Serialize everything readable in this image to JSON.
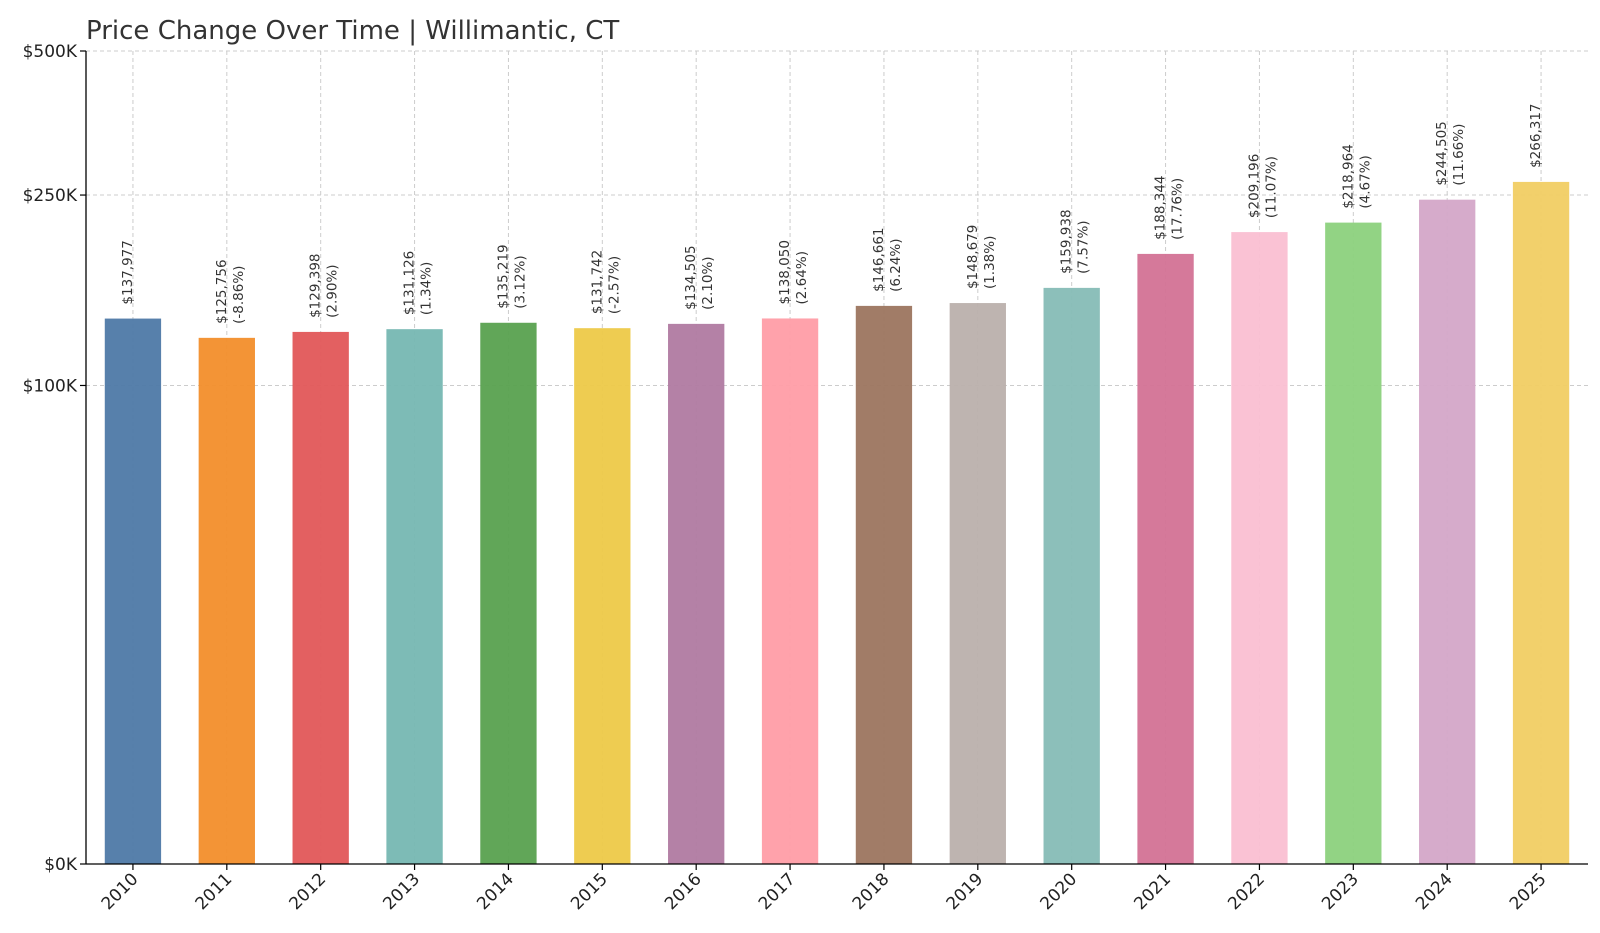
{
  "chart_data": {
    "type": "bar",
    "title": "Price Change Over Time | Willimantic, CT",
    "xlabel": "",
    "ylabel": "",
    "categories": [
      "2010",
      "2011",
      "2012",
      "2013",
      "2014",
      "2015",
      "2016",
      "2017",
      "2018",
      "2019",
      "2020",
      "2021",
      "2022",
      "2023",
      "2024",
      "2025"
    ],
    "values": [
      137977,
      125756,
      129398,
      131126,
      135219,
      131742,
      134505,
      138050,
      146661,
      148679,
      159938,
      188344,
      209196,
      218964,
      244505,
      266317
    ],
    "value_labels": [
      "$137,977",
      "$125,756",
      "$129,398",
      "$131,126",
      "$135,219",
      "$131,742",
      "$134,505",
      "$138,050",
      "$146,661",
      "$148,679",
      "$159,938",
      "$188,344",
      "$209,196",
      "$218,964",
      "$244,505",
      "$266,317"
    ],
    "change_labels": [
      "",
      "(-8.86%)",
      "(2.90%)",
      "(1.34%)",
      "(3.12%)",
      "(-2.57%)",
      "(2.10%)",
      "(2.64%)",
      "(6.24%)",
      "(1.38%)",
      "(7.57%)",
      "(17.76%)",
      "(11.07%)",
      "(4.67%)",
      "(11.66%)",
      ""
    ],
    "bar_colors": [
      "#4e79a7",
      "#f28e2b",
      "#e15759",
      "#76b7b2",
      "#59a14f",
      "#edc948",
      "#b07aa1",
      "#ff9da7",
      "#9c755f",
      "#bab0ac",
      "#86bcb6",
      "#d37295",
      "#fabfd2",
      "#8cd17d",
      "#d4a6c8",
      "#f1ce63"
    ],
    "y_ticks": [
      0,
      100000,
      250000,
      500000
    ],
    "y_tick_labels": [
      "$0K",
      "$100K",
      "$250K",
      "$500K"
    ],
    "ylim": [
      0,
      500000
    ],
    "y_scale": "symlog",
    "grid": true,
    "legend": "none"
  }
}
